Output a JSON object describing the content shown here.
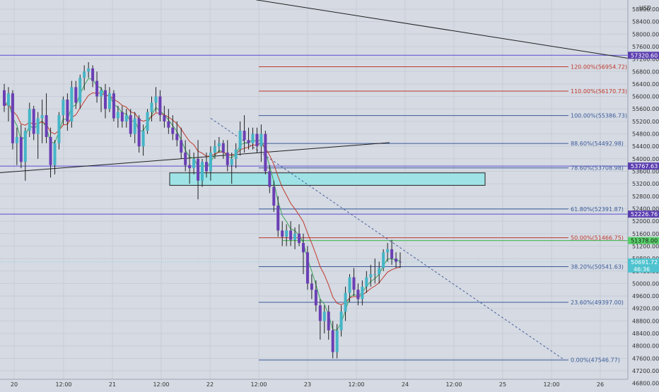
{
  "chart_data": {
    "type": "candlestick",
    "currency_label": "USD",
    "y_axis": {
      "range": [
        46600,
        58900
      ],
      "ticks": [
        58800,
        58400,
        58000,
        57600,
        57200,
        56800,
        56400,
        56000,
        55600,
        55200,
        54800,
        54400,
        54000,
        53600,
        53200,
        52800,
        52400,
        52000,
        51600,
        51200,
        50800,
        50400,
        50000,
        49600,
        49200,
        48800,
        48400,
        48000,
        47600,
        47200,
        46800
      ]
    },
    "x_axis": {
      "labels": [
        "20",
        "12:00",
        "21",
        "12:00",
        "22",
        "12:00",
        "23",
        "12:00",
        "24",
        "12:00",
        "25",
        "12:00",
        "26"
      ]
    },
    "price_labels": [
      {
        "value": 57320.6,
        "text": "57320.60",
        "style": "purple"
      },
      {
        "value": 53767.63,
        "text": "53767.63",
        "style": "purple"
      },
      {
        "value": 52226.76,
        "text": "52226.76",
        "style": "purple"
      },
      {
        "value": 51378.0,
        "text": "51378.00",
        "style": "green"
      },
      {
        "value": 50691.72,
        "text": "50691.72",
        "countdown": "46:36",
        "style": "current"
      }
    ],
    "fibonacci": [
      {
        "ratio": "120.00%",
        "value": 56954.72,
        "label": "120.00%(56954.72)",
        "color": "#c0392b"
      },
      {
        "ratio": "110.00%",
        "value": 56170.73,
        "label": "110.00%(56170.73)",
        "color": "#c0392b"
      },
      {
        "ratio": "100.00%",
        "value": 55386.73,
        "label": "100.00%(55386.73)",
        "color": "#3a5a98"
      },
      {
        "ratio": "88.60%",
        "value": 54492.98,
        "label": "88.60%(54492.98)",
        "color": "#3a5a98"
      },
      {
        "ratio": "78.60%",
        "value": 53708.98,
        "label": "78.60%(53708.98)",
        "color": "#3a5a98"
      },
      {
        "ratio": "61.80%",
        "value": 52391.87,
        "label": "61.80%(52391.87)",
        "color": "#3a5a98"
      },
      {
        "ratio": "50.00%",
        "value": 51466.75,
        "label": "50.00%(51466.75)",
        "color": "#c0392b"
      },
      {
        "ratio": "38.20%",
        "value": 50541.63,
        "label": "38.20%(50541.63)",
        "color": "#3a5a98"
      },
      {
        "ratio": "23.60%",
        "value": 49397.0,
        "label": "23.60%(49397.00)",
        "color": "#3a5a98"
      },
      {
        "ratio": "0.00%",
        "value": 47546.77,
        "label": "0.00%(47546.77)",
        "color": "#3a5a98"
      }
    ],
    "zone": {
      "from": 53150,
      "to": 53550
    },
    "candles": [
      [
        56200,
        56400,
        55500,
        55700
      ],
      [
        55700,
        56300,
        55200,
        56100
      ],
      [
        56100,
        56200,
        54300,
        54500
      ],
      [
        54500,
        55000,
        53800,
        54700
      ],
      [
        54700,
        55100,
        53700,
        53900
      ],
      [
        53900,
        55000,
        53300,
        54900
      ],
      [
        54900,
        55800,
        54700,
        55600
      ],
      [
        55600,
        55700,
        54600,
        54800
      ],
      [
        54800,
        55500,
        54000,
        55300
      ],
      [
        55300,
        55900,
        54500,
        55400
      ],
      [
        55400,
        56100,
        54500,
        54700
      ],
      [
        54700,
        55000,
        53400,
        53800
      ],
      [
        53800,
        54600,
        53500,
        54500
      ],
      [
        54500,
        55500,
        54300,
        55400
      ],
      [
        55400,
        56000,
        55100,
        55900
      ],
      [
        55900,
        56100,
        54900,
        55200
      ],
      [
        55200,
        56500,
        55000,
        56300
      ],
      [
        56300,
        56500,
        55600,
        55800
      ],
      [
        55800,
        56700,
        55600,
        56600
      ],
      [
        56600,
        57000,
        56200,
        56800
      ],
      [
        56800,
        57100,
        56600,
        56900
      ],
      [
        56900,
        57000,
        56300,
        56500
      ],
      [
        56500,
        56800,
        55800,
        56000
      ],
      [
        56000,
        56300,
        55500,
        56200
      ],
      [
        56200,
        56400,
        55300,
        55600
      ],
      [
        55600,
        56300,
        55500,
        56100
      ],
      [
        56100,
        56200,
        55200,
        55300
      ],
      [
        55300,
        55700,
        55000,
        55500
      ],
      [
        55500,
        55700,
        55000,
        55200
      ],
      [
        55200,
        55600,
        55000,
        55400
      ],
      [
        55400,
        55600,
        54700,
        54800
      ],
      [
        54800,
        55500,
        54500,
        55300
      ],
      [
        55300,
        55400,
        54200,
        54400
      ],
      [
        54400,
        55100,
        54100,
        54900
      ],
      [
        54900,
        55600,
        54800,
        55500
      ],
      [
        55500,
        56000,
        55200,
        55800
      ],
      [
        55800,
        56300,
        55500,
        56000
      ],
      [
        56000,
        56200,
        55200,
        55400
      ],
      [
        55400,
        55700,
        55000,
        55200
      ],
      [
        55200,
        55600,
        54800,
        55000
      ],
      [
        55000,
        55400,
        54600,
        54800
      ],
      [
        54800,
        55200,
        54400,
        54600
      ],
      [
        54600,
        55000,
        54000,
        54200
      ],
      [
        54200,
        54600,
        53600,
        53800
      ],
      [
        53800,
        54300,
        53200,
        53700
      ],
      [
        53700,
        54200,
        53500,
        54000
      ],
      [
        54000,
        54600,
        52700,
        53300
      ],
      [
        53300,
        54000,
        53100,
        53900
      ],
      [
        53900,
        54200,
        53400,
        53600
      ],
      [
        53600,
        54400,
        53300,
        54200
      ],
      [
        54200,
        54600,
        54000,
        54400
      ],
      [
        54400,
        54700,
        54200,
        54500
      ],
      [
        54500,
        54600,
        54000,
        54200
      ],
      [
        54200,
        54600,
        53600,
        53800
      ],
      [
        53800,
        54200,
        53200,
        54000
      ],
      [
        54000,
        54500,
        53700,
        54300
      ],
      [
        54300,
        55200,
        54100,
        54900
      ],
      [
        54900,
        55400,
        54200,
        54600
      ],
      [
        54600,
        55000,
        54300,
        54500
      ],
      [
        54500,
        55000,
        54300,
        54800
      ],
      [
        54800,
        55000,
        54200,
        54400
      ],
      [
        54400,
        55100,
        53900,
        54800
      ],
      [
        54800,
        54900,
        53500,
        53600
      ],
      [
        53600,
        53800,
        52900,
        53100
      ],
      [
        53100,
        53300,
        52300,
        52500
      ],
      [
        52500,
        52800,
        51500,
        51700
      ],
      [
        51700,
        52000,
        51200,
        51500
      ],
      [
        51500,
        51900,
        51200,
        51700
      ],
      [
        51700,
        52000,
        51200,
        51400
      ],
      [
        51400,
        51800,
        51100,
        51600
      ],
      [
        51600,
        51900,
        51200,
        51300
      ],
      [
        51300,
        51600,
        50300,
        51000
      ],
      [
        51000,
        51200,
        49800,
        50000
      ],
      [
        50000,
        50300,
        49500,
        49800
      ],
      [
        49800,
        50100,
        49100,
        49300
      ],
      [
        49300,
        49500,
        48200,
        48800
      ],
      [
        48800,
        49300,
        48400,
        49100
      ],
      [
        49100,
        49300,
        48200,
        48500
      ],
      [
        48500,
        48800,
        47600,
        47800
      ],
      [
        47800,
        48700,
        47600,
        48500
      ],
      [
        48500,
        49300,
        48300,
        49100
      ],
      [
        49100,
        49900,
        48800,
        49700
      ],
      [
        49700,
        50300,
        49400,
        50200
      ],
      [
        50200,
        50500,
        49600,
        49800
      ],
      [
        49800,
        50000,
        49300,
        49500
      ],
      [
        49500,
        50100,
        49300,
        49900
      ],
      [
        49900,
        50400,
        49700,
        50200
      ],
      [
        50200,
        50600,
        49900,
        50300
      ],
      [
        50300,
        50800,
        50000,
        50300
      ],
      [
        50300,
        50700,
        50000,
        50500
      ],
      [
        50500,
        51100,
        50400,
        51000
      ],
      [
        51000,
        51300,
        50700,
        51100
      ],
      [
        51100,
        51400,
        50600,
        50800
      ],
      [
        50800,
        51000,
        50500,
        50700
      ],
      [
        50700,
        51000,
        50500,
        50691.72
      ]
    ],
    "trendlines": [
      {
        "from": {
          "day": "18.2",
          "price": 53150
        },
        "to": {
          "day": "23.82",
          "price": 54520
        },
        "style": "solid"
      },
      {
        "from": {
          "day": "22.46",
          "price": 59100
        },
        "to": {
          "day": "26.3",
          "price": 57200
        },
        "style": "solid"
      },
      {
        "from": {
          "day": "22.0",
          "price": 55300
        },
        "to": {
          "day": "25.6",
          "price": 47546
        },
        "style": "dashed"
      }
    ]
  }
}
